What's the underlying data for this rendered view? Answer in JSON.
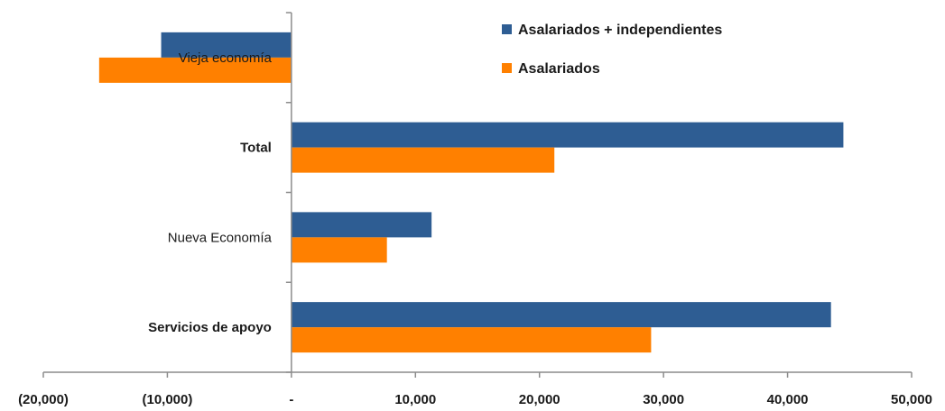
{
  "chart_data": {
    "type": "bar",
    "orientation": "horizontal",
    "categories": [
      "Vieja economía",
      "Total",
      "Nueva Economía",
      "Servicios de apoyo"
    ],
    "bold_categories": [
      "Total",
      "Servicios de apoyo"
    ],
    "series": [
      {
        "name": "Asalariados + independientes",
        "color": "#2e5d93",
        "values": [
          -10500,
          44500,
          11300,
          43500
        ]
      },
      {
        "name": "Asalariados",
        "color": "#ff8000",
        "values": [
          -15500,
          21200,
          7700,
          29000
        ]
      }
    ],
    "xlim": [
      -20000,
      50000
    ],
    "xticks": [
      -20000,
      -10000,
      0,
      10000,
      20000,
      30000,
      40000,
      50000
    ],
    "xtick_labels": [
      "(20,000)",
      "(10,000)",
      "-",
      "10,000",
      "20,000",
      "30,000",
      "40,000",
      "50,000"
    ],
    "title": "",
    "xlabel": "",
    "ylabel": "",
    "grid": false,
    "legend_position": "top-right"
  }
}
